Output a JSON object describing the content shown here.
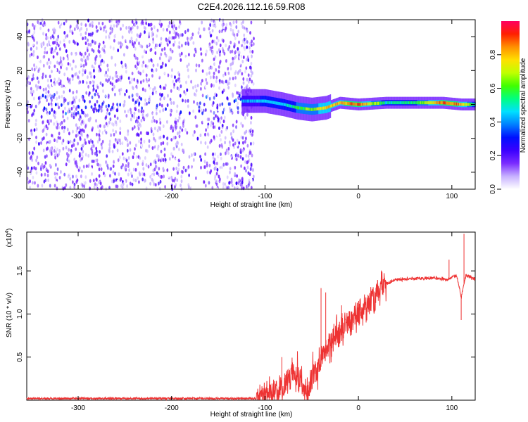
{
  "figure": {
    "title": "C2E4.2026.112.16.59.R08"
  },
  "chart_data": [
    {
      "type": "heatmap",
      "xlabel": "Height of straight line (km)",
      "ylabel": "Frequency (Hz)",
      "xlim": [
        -355,
        125
      ],
      "ylim": [
        -50,
        50
      ],
      "x_ticks": [
        -300,
        -200,
        -100,
        0,
        100
      ],
      "y_ticks": [
        -40,
        -20,
        0,
        20,
        40
      ],
      "grid": false,
      "colorbar": {
        "label": "Normalized spectral amplitude",
        "range": [
          0,
          1
        ],
        "ticks": [
          "0.0",
          "0.2",
          "0.4",
          "0.6",
          "0.8"
        ],
        "colormap": [
          "#ffffff",
          "#c7b1ff",
          "#7a2cff",
          "#3a00ff",
          "#0010ff",
          "#0080ff",
          "#00e0ff",
          "#00ff80",
          "#40ff00",
          "#c0ff00",
          "#ffe000",
          "#ff9000",
          "#ff2000",
          "#ff0060"
        ]
      },
      "description_regions": {
        "noise_band": [
          -355,
          -112
        ],
        "signal_trace": [
          {
            "x": -125,
            "freq": 2,
            "amp": 0.45
          },
          {
            "x": -100,
            "freq": 2,
            "amp": 0.5
          },
          {
            "x": -80,
            "freq": 0,
            "amp": 0.5
          },
          {
            "x": -65,
            "freq": -2,
            "amp": 0.65
          },
          {
            "x": -50,
            "freq": -3,
            "amp": 0.7
          },
          {
            "x": -35,
            "freq": -2,
            "amp": 0.85
          },
          {
            "x": -20,
            "freq": 1,
            "amp": 0.9
          },
          {
            "x": 0,
            "freq": 0,
            "amp": 0.95
          },
          {
            "x": 30,
            "freq": 1,
            "amp": 0.55
          },
          {
            "x": 60,
            "freq": 1,
            "amp": 0.6
          },
          {
            "x": 90,
            "freq": 1,
            "amp": 0.95
          },
          {
            "x": 110,
            "freq": 0,
            "amp": 0.9
          },
          {
            "x": 125,
            "freq": 0,
            "amp": 0.55
          }
        ]
      }
    },
    {
      "type": "line",
      "xlabel": "Height of straight line (km)",
      "ylabel": "SNR (10 * v/v)",
      "yscale_note": "(x10",
      "yscale_exp": "4",
      "xlim": [
        -355,
        125
      ],
      "ylim": [
        0,
        1.95
      ],
      "x_ticks": [
        -300,
        -200,
        -100,
        0,
        100
      ],
      "y_ticks": [
        "0.5",
        "1.0",
        "1.5"
      ],
      "y_tick_values": [
        0.5,
        1.0,
        1.5
      ],
      "grid": false,
      "series": [
        {
          "color": "#ee3333",
          "x": [
            -355,
            -300,
            -200,
            -150,
            -110,
            -100,
            -90,
            -80,
            -75,
            -70,
            -65,
            -60,
            -55,
            -50,
            -45,
            -40,
            -35,
            -30,
            -25,
            -20,
            -15,
            -10,
            -5,
            0,
            10,
            20,
            30,
            40,
            60,
            80,
            95,
            105,
            110,
            115,
            125
          ],
          "y": [
            0.02,
            0.02,
            0.02,
            0.02,
            0.02,
            0.05,
            0.1,
            0.12,
            0.25,
            0.35,
            0.28,
            0.15,
            0.08,
            0.35,
            0.3,
            0.45,
            0.55,
            0.65,
            0.75,
            0.8,
            0.85,
            0.9,
            0.95,
            1.0,
            1.1,
            1.25,
            1.35,
            1.4,
            1.41,
            1.42,
            1.4,
            1.45,
            1.2,
            1.45,
            1.4
          ],
          "spikes": [
            {
              "x": -82,
              "y": 0.5
            },
            {
              "x": -40,
              "y": 1.3
            },
            {
              "x": -35,
              "y": 1.25
            },
            {
              "x": -18,
              "y": 1.1
            },
            {
              "x": 97,
              "y": 1.63
            },
            {
              "x": 110,
              "y": 0.93
            },
            {
              "x": 113,
              "y": 1.93
            }
          ]
        }
      ]
    }
  ]
}
